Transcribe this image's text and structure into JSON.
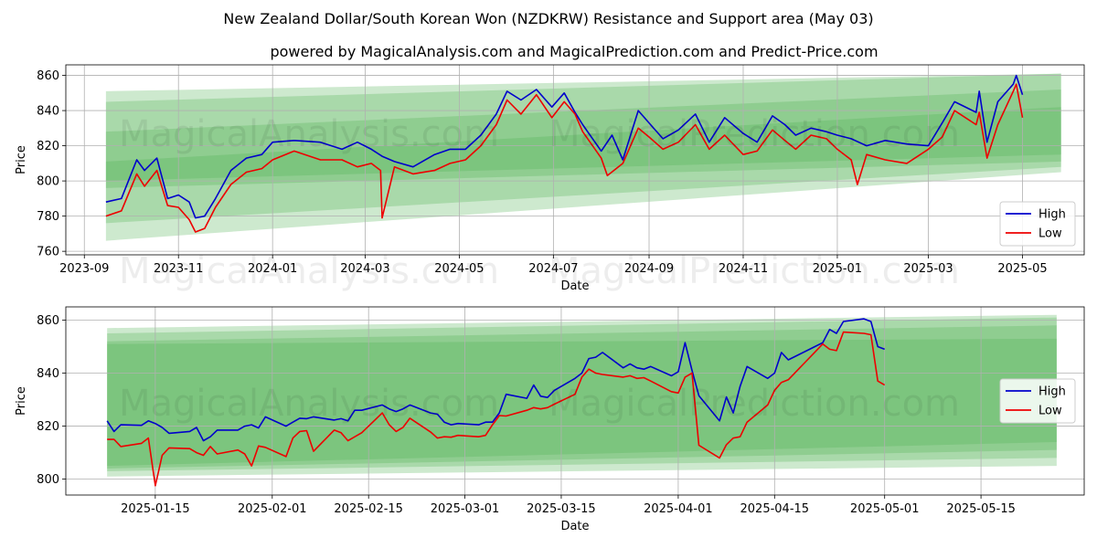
{
  "title": "New Zealand Dollar/South Korean Won (NZDKRW) Resistance and Support area (May 03)",
  "subtitle": "powered by MagicalAnalysis.com and MagicalPrediction.com and Predict-Price.com",
  "watermarks": [
    "MagicalAnalysis.com",
    "MagicalPrediction.com"
  ],
  "colors": {
    "high": "#0000cc",
    "low": "#ee0000",
    "band": "#4caf50"
  },
  "chart_data": [
    {
      "type": "line",
      "xlabel": "Date",
      "ylabel": "Price",
      "x_range": [
        "2023-08-20",
        "2025-06-10"
      ],
      "ylim": [
        758,
        866
      ],
      "x_ticks": [
        "2023-09",
        "2023-11",
        "2024-01",
        "2024-03",
        "2024-05",
        "2024-07",
        "2024-09",
        "2024-11",
        "2025-01",
        "2025-03",
        "2025-05"
      ],
      "y_ticks": [
        760,
        780,
        800,
        820,
        840,
        860
      ],
      "grid": true,
      "legend_position": "lower-right",
      "bands": [
        {
          "x": [
            "2023-09-15",
            "2025-05-26"
          ],
          "upper": [
            851,
            861
          ],
          "lower": [
            766,
            805
          ]
        },
        {
          "x": [
            "2023-09-15",
            "2025-05-26"
          ],
          "upper": [
            845,
            861
          ],
          "lower": [
            776,
            808
          ]
        },
        {
          "x": [
            "2023-09-15",
            "2025-05-26"
          ],
          "upper": [
            828,
            852
          ],
          "lower": [
            796,
            811
          ]
        },
        {
          "x": [
            "2023-09-15",
            "2025-05-26"
          ],
          "upper": [
            811,
            842
          ],
          "lower": [
            800,
            815
          ]
        }
      ],
      "series": [
        {
          "name": "High",
          "x": [
            "2023-09-15",
            "2023-09-25",
            "2023-10-05",
            "2023-10-10",
            "2023-10-18",
            "2023-10-25",
            "2023-11-01",
            "2023-11-08",
            "2023-11-12",
            "2023-11-18",
            "2023-11-25",
            "2023-12-05",
            "2023-12-15",
            "2023-12-25",
            "2024-01-01",
            "2024-01-15",
            "2024-02-01",
            "2024-02-15",
            "2024-02-25",
            "2024-03-05",
            "2024-03-12",
            "2024-03-20",
            "2024-04-01",
            "2024-04-15",
            "2024-04-25",
            "2024-05-05",
            "2024-05-15",
            "2024-05-25",
            "2024-06-01",
            "2024-06-10",
            "2024-06-20",
            "2024-06-30",
            "2024-07-08",
            "2024-07-15",
            "2024-07-20",
            "2024-08-01",
            "2024-08-08",
            "2024-08-15",
            "2024-08-25",
            "2024-09-01",
            "2024-09-10",
            "2024-09-20",
            "2024-10-01",
            "2024-10-10",
            "2024-10-20",
            "2024-11-01",
            "2024-11-10",
            "2024-11-20",
            "2024-11-28",
            "2024-12-05",
            "2024-12-15",
            "2024-12-25",
            "2025-01-01",
            "2025-01-10",
            "2025-01-20",
            "2025-02-01",
            "2025-02-15",
            "2025-03-01",
            "2025-03-10",
            "2025-03-18",
            "2025-04-01",
            "2025-04-03",
            "2025-04-08",
            "2025-04-15",
            "2025-04-25",
            "2025-04-27",
            "2025-05-01"
          ],
          "values": [
            788,
            790,
            812,
            806,
            813,
            790,
            792,
            788,
            779,
            780,
            790,
            806,
            813,
            815,
            822,
            823,
            822,
            818,
            822,
            818,
            814,
            811,
            808,
            815,
            818,
            818,
            826,
            838,
            851,
            846,
            852,
            842,
            850,
            839,
            832,
            817,
            826,
            812,
            840,
            833,
            824,
            829,
            838,
            822,
            836,
            827,
            822,
            837,
            832,
            826,
            830,
            828,
            826,
            824,
            820,
            823,
            821,
            820,
            833,
            845,
            839,
            851,
            822,
            845,
            855,
            860,
            849
          ]
        },
        {
          "name": "Low",
          "x": [
            "2023-09-15",
            "2023-09-25",
            "2023-10-05",
            "2023-10-10",
            "2023-10-18",
            "2023-10-25",
            "2023-11-01",
            "2023-11-08",
            "2023-11-12",
            "2023-11-18",
            "2023-11-25",
            "2023-12-05",
            "2023-12-15",
            "2023-12-25",
            "2024-01-01",
            "2024-01-15",
            "2024-02-01",
            "2024-02-15",
            "2024-02-25",
            "2024-03-05",
            "2024-03-11",
            "2024-03-12",
            "2024-03-20",
            "2024-04-01",
            "2024-04-15",
            "2024-04-25",
            "2024-05-05",
            "2024-05-15",
            "2024-05-25",
            "2024-06-01",
            "2024-06-10",
            "2024-06-20",
            "2024-06-30",
            "2024-07-08",
            "2024-07-15",
            "2024-07-20",
            "2024-08-01",
            "2024-08-05",
            "2024-08-15",
            "2024-08-25",
            "2024-09-01",
            "2024-09-10",
            "2024-09-20",
            "2024-10-01",
            "2024-10-10",
            "2024-10-20",
            "2024-11-01",
            "2024-11-10",
            "2024-11-20",
            "2024-11-28",
            "2024-12-05",
            "2024-12-15",
            "2024-12-25",
            "2025-01-01",
            "2025-01-10",
            "2025-01-14",
            "2025-01-20",
            "2025-02-01",
            "2025-02-15",
            "2025-03-01",
            "2025-03-10",
            "2025-03-18",
            "2025-04-01",
            "2025-04-03",
            "2025-04-08",
            "2025-04-15",
            "2025-04-25",
            "2025-04-27",
            "2025-05-01"
          ],
          "values": [
            780,
            783,
            804,
            797,
            806,
            786,
            785,
            778,
            771,
            773,
            785,
            798,
            805,
            807,
            812,
            817,
            812,
            812,
            808,
            810,
            806,
            779,
            808,
            804,
            806,
            810,
            812,
            820,
            832,
            846,
            838,
            849,
            836,
            845,
            838,
            828,
            813,
            803,
            810,
            830,
            825,
            818,
            822,
            832,
            818,
            826,
            815,
            817,
            829,
            823,
            818,
            826,
            824,
            818,
            812,
            798,
            815,
            812,
            810,
            818,
            825,
            840,
            832,
            839,
            813,
            832,
            851,
            855,
            836
          ]
        }
      ]
    },
    {
      "type": "line",
      "xlabel": "Date",
      "ylabel": "Price",
      "x_range": [
        "2025-01-02",
        "2025-05-30"
      ],
      "ylim": [
        794,
        865
      ],
      "x_ticks": [
        "2025-01-15",
        "2025-02-01",
        "2025-02-15",
        "2025-03-01",
        "2025-03-15",
        "2025-04-01",
        "2025-04-15",
        "2025-05-01",
        "2025-05-15"
      ],
      "y_ticks": [
        800,
        820,
        840,
        860
      ],
      "grid": true,
      "legend_position": "center-right",
      "bands": [
        {
          "x": [
            "2025-01-08",
            "2025-05-26"
          ],
          "upper": [
            857,
            862
          ],
          "lower": [
            801,
            805
          ]
        },
        {
          "x": [
            "2025-01-08",
            "2025-05-26"
          ],
          "upper": [
            855,
            861
          ],
          "lower": [
            803,
            808
          ]
        },
        {
          "x": [
            "2025-01-08",
            "2025-05-26"
          ],
          "upper": [
            852,
            858
          ],
          "lower": [
            804,
            811
          ]
        },
        {
          "x": [
            "2025-01-08",
            "2025-05-26"
          ],
          "upper": [
            851,
            853
          ],
          "lower": [
            805,
            814
          ]
        }
      ],
      "series": [
        {
          "name": "High",
          "x": [
            "2025-01-08",
            "2025-01-09",
            "2025-01-10",
            "2025-01-13",
            "2025-01-14",
            "2025-01-15",
            "2025-01-16",
            "2025-01-17",
            "2025-01-20",
            "2025-01-21",
            "2025-01-22",
            "2025-01-23",
            "2025-01-24",
            "2025-01-27",
            "2025-01-28",
            "2025-01-29",
            "2025-01-30",
            "2025-01-31",
            "2025-02-03",
            "2025-02-04",
            "2025-02-05",
            "2025-02-06",
            "2025-02-07",
            "2025-02-10",
            "2025-02-11",
            "2025-02-12",
            "2025-02-13",
            "2025-02-14",
            "2025-02-17",
            "2025-02-18",
            "2025-02-19",
            "2025-02-20",
            "2025-02-21",
            "2025-02-24",
            "2025-02-25",
            "2025-02-26",
            "2025-02-27",
            "2025-02-28",
            "2025-03-03",
            "2025-03-04",
            "2025-03-05",
            "2025-03-06",
            "2025-03-07",
            "2025-03-10",
            "2025-03-11",
            "2025-03-12",
            "2025-03-13",
            "2025-03-14",
            "2025-03-17",
            "2025-03-18",
            "2025-03-19",
            "2025-03-20",
            "2025-03-21",
            "2025-03-24",
            "2025-03-25",
            "2025-03-26",
            "2025-03-27",
            "2025-03-28",
            "2025-03-31",
            "2025-04-01",
            "2025-04-02",
            "2025-04-03",
            "2025-04-04",
            "2025-04-07",
            "2025-04-08",
            "2025-04-09",
            "2025-04-10",
            "2025-04-11",
            "2025-04-14",
            "2025-04-15",
            "2025-04-16",
            "2025-04-17",
            "2025-04-22",
            "2025-04-23",
            "2025-04-24",
            "2025-04-25",
            "2025-04-28",
            "2025-04-29",
            "2025-04-30",
            "2025-05-01"
          ],
          "values": [
            822,
            818,
            820.5,
            820.3,
            822,
            821,
            819.5,
            817.3,
            818,
            819.5,
            814.5,
            816,
            818.5,
            818.5,
            820,
            820.5,
            819.3,
            823.5,
            820,
            821.5,
            823,
            822.8,
            823.5,
            822.3,
            822.8,
            822,
            826,
            826,
            828,
            826.5,
            825.5,
            826.5,
            828,
            825,
            824.5,
            821.5,
            820.5,
            821,
            820.5,
            821.5,
            821.5,
            825,
            832,
            830.5,
            835.5,
            831.3,
            830.8,
            833.5,
            838,
            840,
            845.5,
            846,
            847.8,
            842,
            843.5,
            842,
            841.5,
            842.5,
            839,
            840.5,
            851.5,
            841,
            831.5,
            822,
            831,
            825,
            835,
            842.5,
            838,
            840,
            847.8,
            845,
            851.5,
            856.5,
            855,
            859.5,
            860.5,
            859.5,
            850,
            849
          ]
        },
        {
          "name": "Low",
          "x": [
            "2025-01-08",
            "2025-01-09",
            "2025-01-10",
            "2025-01-13",
            "2025-01-14",
            "2025-01-15",
            "2025-01-16",
            "2025-01-17",
            "2025-01-20",
            "2025-01-21",
            "2025-01-22",
            "2025-01-23",
            "2025-01-24",
            "2025-01-27",
            "2025-01-28",
            "2025-01-29",
            "2025-01-30",
            "2025-01-31",
            "2025-02-03",
            "2025-02-04",
            "2025-02-05",
            "2025-02-06",
            "2025-02-07",
            "2025-02-10",
            "2025-02-11",
            "2025-02-12",
            "2025-02-13",
            "2025-02-14",
            "2025-02-17",
            "2025-02-18",
            "2025-02-19",
            "2025-02-20",
            "2025-02-21",
            "2025-02-24",
            "2025-02-25",
            "2025-02-26",
            "2025-02-27",
            "2025-02-28",
            "2025-03-03",
            "2025-03-04",
            "2025-03-05",
            "2025-03-06",
            "2025-03-07",
            "2025-03-10",
            "2025-03-11",
            "2025-03-12",
            "2025-03-13",
            "2025-03-14",
            "2025-03-17",
            "2025-03-18",
            "2025-03-19",
            "2025-03-20",
            "2025-03-21",
            "2025-03-24",
            "2025-03-25",
            "2025-03-26",
            "2025-03-27",
            "2025-03-28",
            "2025-03-31",
            "2025-04-01",
            "2025-04-02",
            "2025-04-03",
            "2025-04-04",
            "2025-04-07",
            "2025-04-08",
            "2025-04-09",
            "2025-04-10",
            "2025-04-11",
            "2025-04-14",
            "2025-04-15",
            "2025-04-16",
            "2025-04-17",
            "2025-04-22",
            "2025-04-23",
            "2025-04-24",
            "2025-04-25",
            "2025-04-28",
            "2025-04-29",
            "2025-04-30",
            "2025-05-01"
          ],
          "values": [
            815,
            815,
            812.3,
            813.5,
            815.5,
            797.5,
            809,
            811.8,
            811.5,
            810,
            809,
            812.3,
            809.5,
            811,
            809.5,
            805,
            812.5,
            812,
            808.5,
            815.5,
            818,
            818.3,
            810.5,
            818.5,
            817.5,
            814.5,
            816,
            817.5,
            825,
            820.5,
            818,
            819.5,
            823,
            817.8,
            815.5,
            816,
            815.8,
            816.5,
            816,
            816.5,
            820.5,
            824,
            823.8,
            826,
            827,
            826.5,
            827,
            828.3,
            832,
            838.5,
            841.5,
            840,
            839.5,
            838.5,
            839,
            838,
            838.3,
            837,
            833,
            832.5,
            838.5,
            840,
            812.8,
            808,
            813,
            815.5,
            816,
            821.5,
            828,
            833.5,
            836.5,
            837.5,
            851,
            849,
            848.5,
            855.5,
            855,
            854.5,
            837,
            835.5
          ]
        }
      ]
    }
  ]
}
